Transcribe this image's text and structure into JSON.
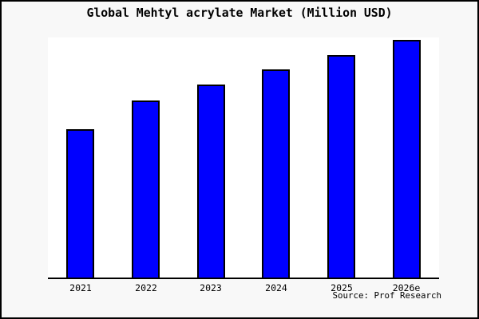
{
  "chart_data": {
    "type": "bar",
    "title": "Global Mehtyl acrylate Market (Million USD)",
    "categories": [
      "2021",
      "2022",
      "2023",
      "2024",
      "2025",
      "2026e"
    ],
    "values": [
      186,
      222,
      242,
      261,
      279,
      298
    ],
    "value_scale": "relative-estimate (no numeric y-axis shown in chart)",
    "xlabel": "",
    "ylabel": "",
    "ylim": [
      0,
      301
    ],
    "grid": false,
    "legend": false,
    "bar_color": "#0000ff",
    "bar_edge_color": "#000000",
    "source_note": "Source: Prof Research"
  },
  "colors": {
    "figure_background": "#f8f8f8",
    "plot_background": "#ffffff",
    "frame_border": "#000000",
    "axis": "#000000",
    "text": "#000000"
  }
}
